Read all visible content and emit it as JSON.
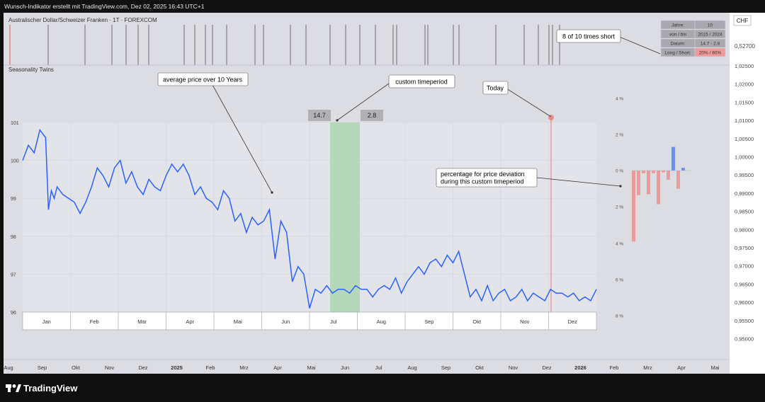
{
  "header": {
    "credit": "Wunsch-Indikator erstellt mit TradingView.com, Dez 02, 2025 16:43 UTC+1",
    "symbol": "Australischer Dollar/Schweizer Franken · 1T · FOREXCOM",
    "indicator": "Seasonality Twins",
    "currency": "CHF"
  },
  "footer": {
    "brand": "TradingView"
  },
  "info_table": {
    "rows": [
      {
        "label": "Jahre:",
        "value": "10",
        "highlight": false
      },
      {
        "label": "von / bis",
        "value": "2015 / 2024",
        "highlight": false
      },
      {
        "label": "Datum:",
        "value": "14.7 - 2.8",
        "highlight": false
      },
      {
        "label": "Long / Short:",
        "value": "20% / 80%",
        "highlight": true
      }
    ]
  },
  "callouts": {
    "short_count": "8 of 10 times short",
    "average": "average price over 10 Years",
    "custom": "custom timeperiod",
    "today": "Today",
    "deviation_line1": "percentage for price deviation",
    "deviation_line2": "during this custom timeperiod"
  },
  "period_tags": {
    "start": "14.7",
    "end": "2.8"
  },
  "price_axis": {
    "top_value": "0,52700",
    "ticks": [
      "1,02500",
      "1,02000",
      "1,01500",
      "1,01000",
      "1,00500",
      "1,00000",
      "0,99500",
      "0,99000",
      "0,98500",
      "0,98000",
      "0,97500",
      "0,97000",
      "0,96500",
      "0,96000",
      "0,95500",
      "0,95000"
    ]
  },
  "time_axis": [
    "Aug",
    "Sep",
    "Okt",
    "Nov",
    "Dez",
    "2025",
    "Feb",
    "Mrz",
    "Apr",
    "Mai",
    "Jun",
    "Jul",
    "Aug",
    "Sep",
    "Okt",
    "Nov",
    "Dez",
    "2026",
    "Feb",
    "Mrz",
    "Apr",
    "Mai"
  ],
  "colors": {
    "line": "#2962ff",
    "band": "#a5d6a7",
    "bar_neg": "#ef9a9a",
    "bar_pos": "#6f8fe8",
    "today": "#ef5350"
  },
  "chart_data": {
    "type": "line",
    "title": "Seasonality Twins",
    "x_months": [
      "Jan",
      "Feb",
      "Mär",
      "Apr",
      "Mai",
      "Jun",
      "Jul",
      "Aug",
      "Sep",
      "Okt",
      "Nov",
      "Dez"
    ],
    "ylim": [
      96,
      101
    ],
    "yticks": [
      "101",
      "100",
      "99",
      "98",
      "97",
      "96"
    ],
    "series": [
      {
        "x_frac": [
          0,
          0.01,
          0.02,
          0.03,
          0.04,
          0.045,
          0.05,
          0.055,
          0.06,
          0.07,
          0.08,
          0.09,
          0.1,
          0.11,
          0.12,
          0.13,
          0.14,
          0.15,
          0.16,
          0.17,
          0.18,
          0.19,
          0.2,
          0.21,
          0.22,
          0.23,
          0.24,
          0.25,
          0.26,
          0.27,
          0.28,
          0.29,
          0.3,
          0.31,
          0.32,
          0.33,
          0.34,
          0.35,
          0.36,
          0.37,
          0.38,
          0.39,
          0.4,
          0.41,
          0.42,
          0.43,
          0.44,
          0.45,
          0.46,
          0.47,
          0.48,
          0.49,
          0.5,
          0.51,
          0.52,
          0.53,
          0.54,
          0.55,
          0.56,
          0.57,
          0.58,
          0.59,
          0.6,
          0.61,
          0.62,
          0.63,
          0.64,
          0.65,
          0.66,
          0.67,
          0.68,
          0.69,
          0.7,
          0.71,
          0.72,
          0.73,
          0.74,
          0.75,
          0.76,
          0.77,
          0.78,
          0.79,
          0.8,
          0.81,
          0.82,
          0.83,
          0.84,
          0.85,
          0.86,
          0.87,
          0.88,
          0.89,
          0.9,
          0.91,
          0.92,
          0.93,
          0.94,
          0.95,
          0.96,
          0.97,
          0.98,
          0.99,
          1.0
        ],
        "y": [
          100.0,
          100.4,
          100.2,
          100.8,
          100.6,
          98.7,
          99.2,
          99.0,
          99.3,
          99.1,
          99.0,
          98.9,
          98.6,
          98.9,
          99.3,
          99.8,
          99.6,
          99.3,
          99.8,
          100.0,
          99.4,
          99.7,
          99.3,
          99.1,
          99.5,
          99.3,
          99.2,
          99.6,
          99.9,
          99.7,
          99.9,
          99.6,
          99.1,
          99.3,
          99.0,
          98.9,
          98.7,
          99.2,
          99.0,
          98.4,
          98.6,
          98.1,
          98.5,
          98.3,
          98.4,
          98.7,
          97.4,
          98.4,
          98.1,
          96.8,
          97.2,
          97.0,
          96.1,
          96.6,
          96.5,
          96.7,
          96.5,
          96.6,
          96.6,
          96.5,
          96.7,
          96.6,
          96.6,
          96.4,
          96.6,
          96.7,
          96.6,
          96.9,
          96.5,
          96.8,
          97.0,
          97.2,
          97.0,
          97.3,
          97.4,
          97.2,
          97.5,
          97.3,
          97.6,
          97.0,
          96.4,
          96.6,
          96.3,
          96.7,
          96.3,
          96.5,
          96.6,
          96.3,
          96.4,
          96.6,
          96.3,
          96.5,
          96.4,
          96.3,
          96.6,
          96.5,
          96.5,
          96.4,
          96.5,
          96.3,
          96.4,
          96.3,
          96.6
        ]
      }
    ],
    "bars": {
      "ylabels": [
        "4 %",
        "2 %",
        "0 %",
        "2 %",
        "4 %",
        "6 %",
        "8 %"
      ],
      "values": [
        -7.8,
        -2.7,
        -0.3,
        -2.6,
        -0.3,
        -3.7,
        -0.2,
        -1.0,
        2.6,
        -2.0,
        0.3
      ]
    }
  }
}
